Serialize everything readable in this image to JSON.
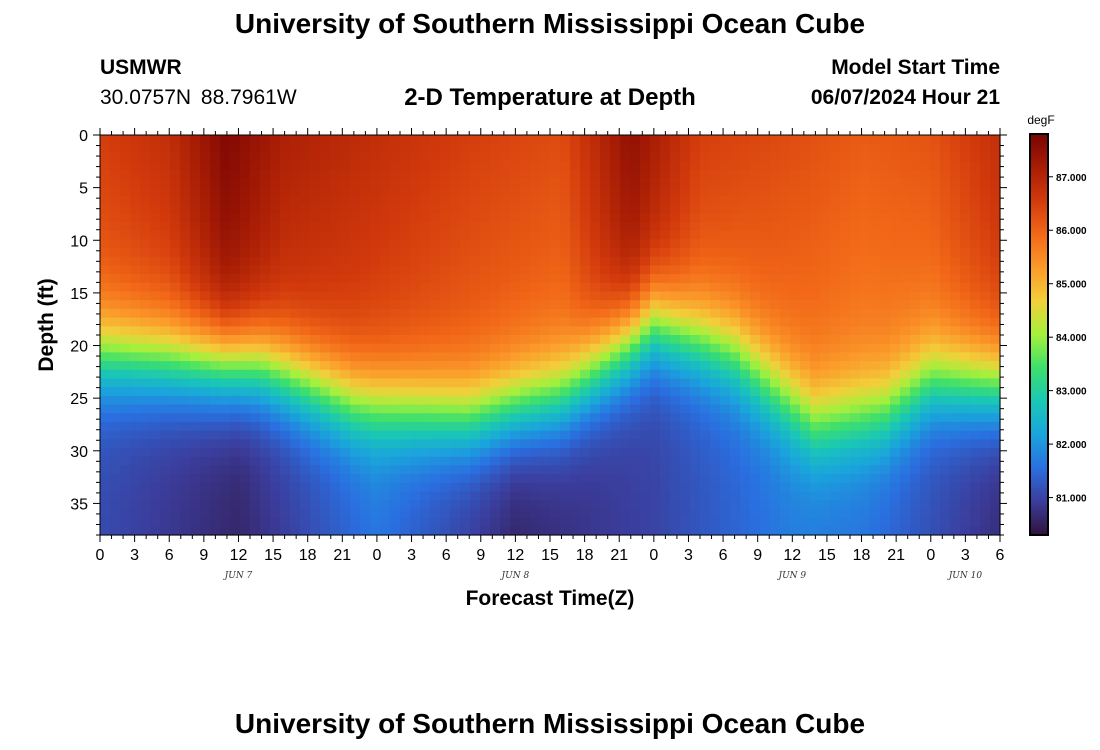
{
  "header": {
    "title": "University of Southern Mississippi Ocean Cube",
    "station": "USMWR",
    "coords": "30.0757N  88.7961W",
    "subtitle": "2-D Temperature at Depth",
    "model_label": "Model Start Time",
    "model_date": "06/07/2024 Hour 21"
  },
  "footer": {
    "title": "University of Southern Mississippi Ocean Cube"
  },
  "chart_data": {
    "type": "heatmap",
    "title": "2-D Temperature at Depth",
    "xlabel": "Forecast Time(Z)",
    "ylabel": "Depth (ft)",
    "units": "degF",
    "x_range_hours": [
      0,
      78
    ],
    "y_range_ft": [
      0,
      38
    ],
    "x_ticks": [
      "0",
      "3",
      "6",
      "9",
      "12",
      "15",
      "18",
      "21",
      "0",
      "3",
      "6",
      "9",
      "12",
      "15",
      "18",
      "21",
      "0",
      "3",
      "6",
      "9",
      "12",
      "15",
      "18",
      "21",
      "0",
      "3",
      "6"
    ],
    "day_labels": [
      {
        "label": "JUN 7",
        "hour": 12
      },
      {
        "label": "JUN 8",
        "hour": 36
      },
      {
        "label": "JUN 9",
        "hour": 60
      },
      {
        "label": "JUN 10",
        "hour": 75
      }
    ],
    "y_ticks": [
      0,
      5,
      10,
      15,
      20,
      25,
      30,
      35
    ],
    "colorbar": {
      "min": 80.3,
      "max": 87.8,
      "ticks": [
        81,
        82,
        83,
        84,
        85,
        86,
        87
      ],
      "tick_labels": [
        "81.000",
        "82.000",
        "83.000",
        "84.000",
        "85.000",
        "86.000",
        "87.000"
      ],
      "stops": [
        "#30123b",
        "#3b3d9c",
        "#2a6fe0",
        "#1aa4dc",
        "#1ac7b5",
        "#3ddf6c",
        "#a4f03c",
        "#f2cf3a",
        "#fb9a2a",
        "#f26818",
        "#d23a0c",
        "#a81d05",
        "#7a0403"
      ]
    },
    "thermocline_depth_ft": [
      {
        "hour": 0,
        "depth": 21
      },
      {
        "hour": 6,
        "depth": 21.5
      },
      {
        "hour": 14,
        "depth": 22
      },
      {
        "hour": 22,
        "depth": 25.5
      },
      {
        "hour": 32,
        "depth": 27
      },
      {
        "hour": 40,
        "depth": 25
      },
      {
        "hour": 48,
        "depth": 18
      },
      {
        "hour": 55,
        "depth": 21
      },
      {
        "hour": 62,
        "depth": 27.5
      },
      {
        "hour": 68,
        "depth": 26.5
      },
      {
        "hour": 72,
        "depth": 23.5
      },
      {
        "hour": 78,
        "depth": 24
      }
    ],
    "surface_temperature_degF": [
      {
        "hour": 0,
        "value": 86.5
      },
      {
        "hour": 6,
        "value": 86.8
      },
      {
        "hour": 11,
        "value": 87.7
      },
      {
        "hour": 16,
        "value": 87.1
      },
      {
        "hour": 24,
        "value": 86.8
      },
      {
        "hour": 32,
        "value": 86.5
      },
      {
        "hour": 40,
        "value": 86.3
      },
      {
        "hour": 46,
        "value": 87.5
      },
      {
        "hour": 52,
        "value": 86.5
      },
      {
        "hour": 60,
        "value": 86.3
      },
      {
        "hour": 66,
        "value": 86.1
      },
      {
        "hour": 72,
        "value": 86.2
      },
      {
        "hour": 78,
        "value": 86.8
      }
    ],
    "bottom_temperature_degF": [
      {
        "hour": 0,
        "value": 81.1
      },
      {
        "hour": 12,
        "value": 80.6
      },
      {
        "hour": 24,
        "value": 81.6
      },
      {
        "hour": 36,
        "value": 80.6
      },
      {
        "hour": 48,
        "value": 81.0
      },
      {
        "hour": 60,
        "value": 81.7
      },
      {
        "hour": 66,
        "value": 81.6
      },
      {
        "hour": 78,
        "value": 80.7
      }
    ]
  }
}
